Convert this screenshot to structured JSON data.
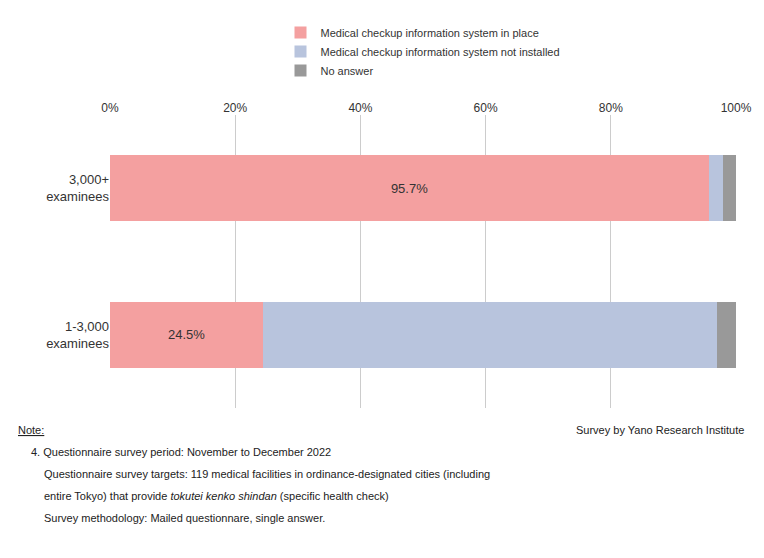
{
  "chart_data": {
    "type": "bar",
    "orientation": "horizontal",
    "stacked": true,
    "categories": [
      "3,000+\nexaminees",
      "1-3,000\nexaminees"
    ],
    "series": [
      {
        "name": "Medical checkup information system in place",
        "color": "#F4A0A0",
        "values": [
          95.7,
          24.5
        ],
        "data_labels": true,
        "value_labels": [
          "95.7%",
          "24.5%"
        ]
      },
      {
        "name": "Medical checkup information system not installed",
        "color": "#B8C4DD",
        "values": [
          2.2,
          72.5
        ]
      },
      {
        "name": "No answer",
        "color": "#999999",
        "values": [
          2.1,
          3.0
        ]
      }
    ],
    "xlim": [
      0,
      100
    ],
    "xticks": [
      {
        "value": 0,
        "label": "0%"
      },
      {
        "value": 20,
        "label": "20%"
      },
      {
        "value": 40,
        "label": "40%"
      },
      {
        "value": 60,
        "label": "60%"
      },
      {
        "value": 80,
        "label": "80%"
      },
      {
        "value": 100,
        "label": "100%"
      }
    ],
    "grid": true,
    "legend": "top",
    "annotations": [
      "Note:",
      "Survey by Yano Research Institute",
      "4. Questionnaire survey period: November to December 2022",
      "Questionnaire survey targets: 119 medical facilities in ordinance-designated cities (including",
      "entire Tokyo) that provide",
      "tokutei kenko shindan",
      "(specific health check)",
      "Survey methodology: Mailed questionnare, single answer."
    ]
  }
}
